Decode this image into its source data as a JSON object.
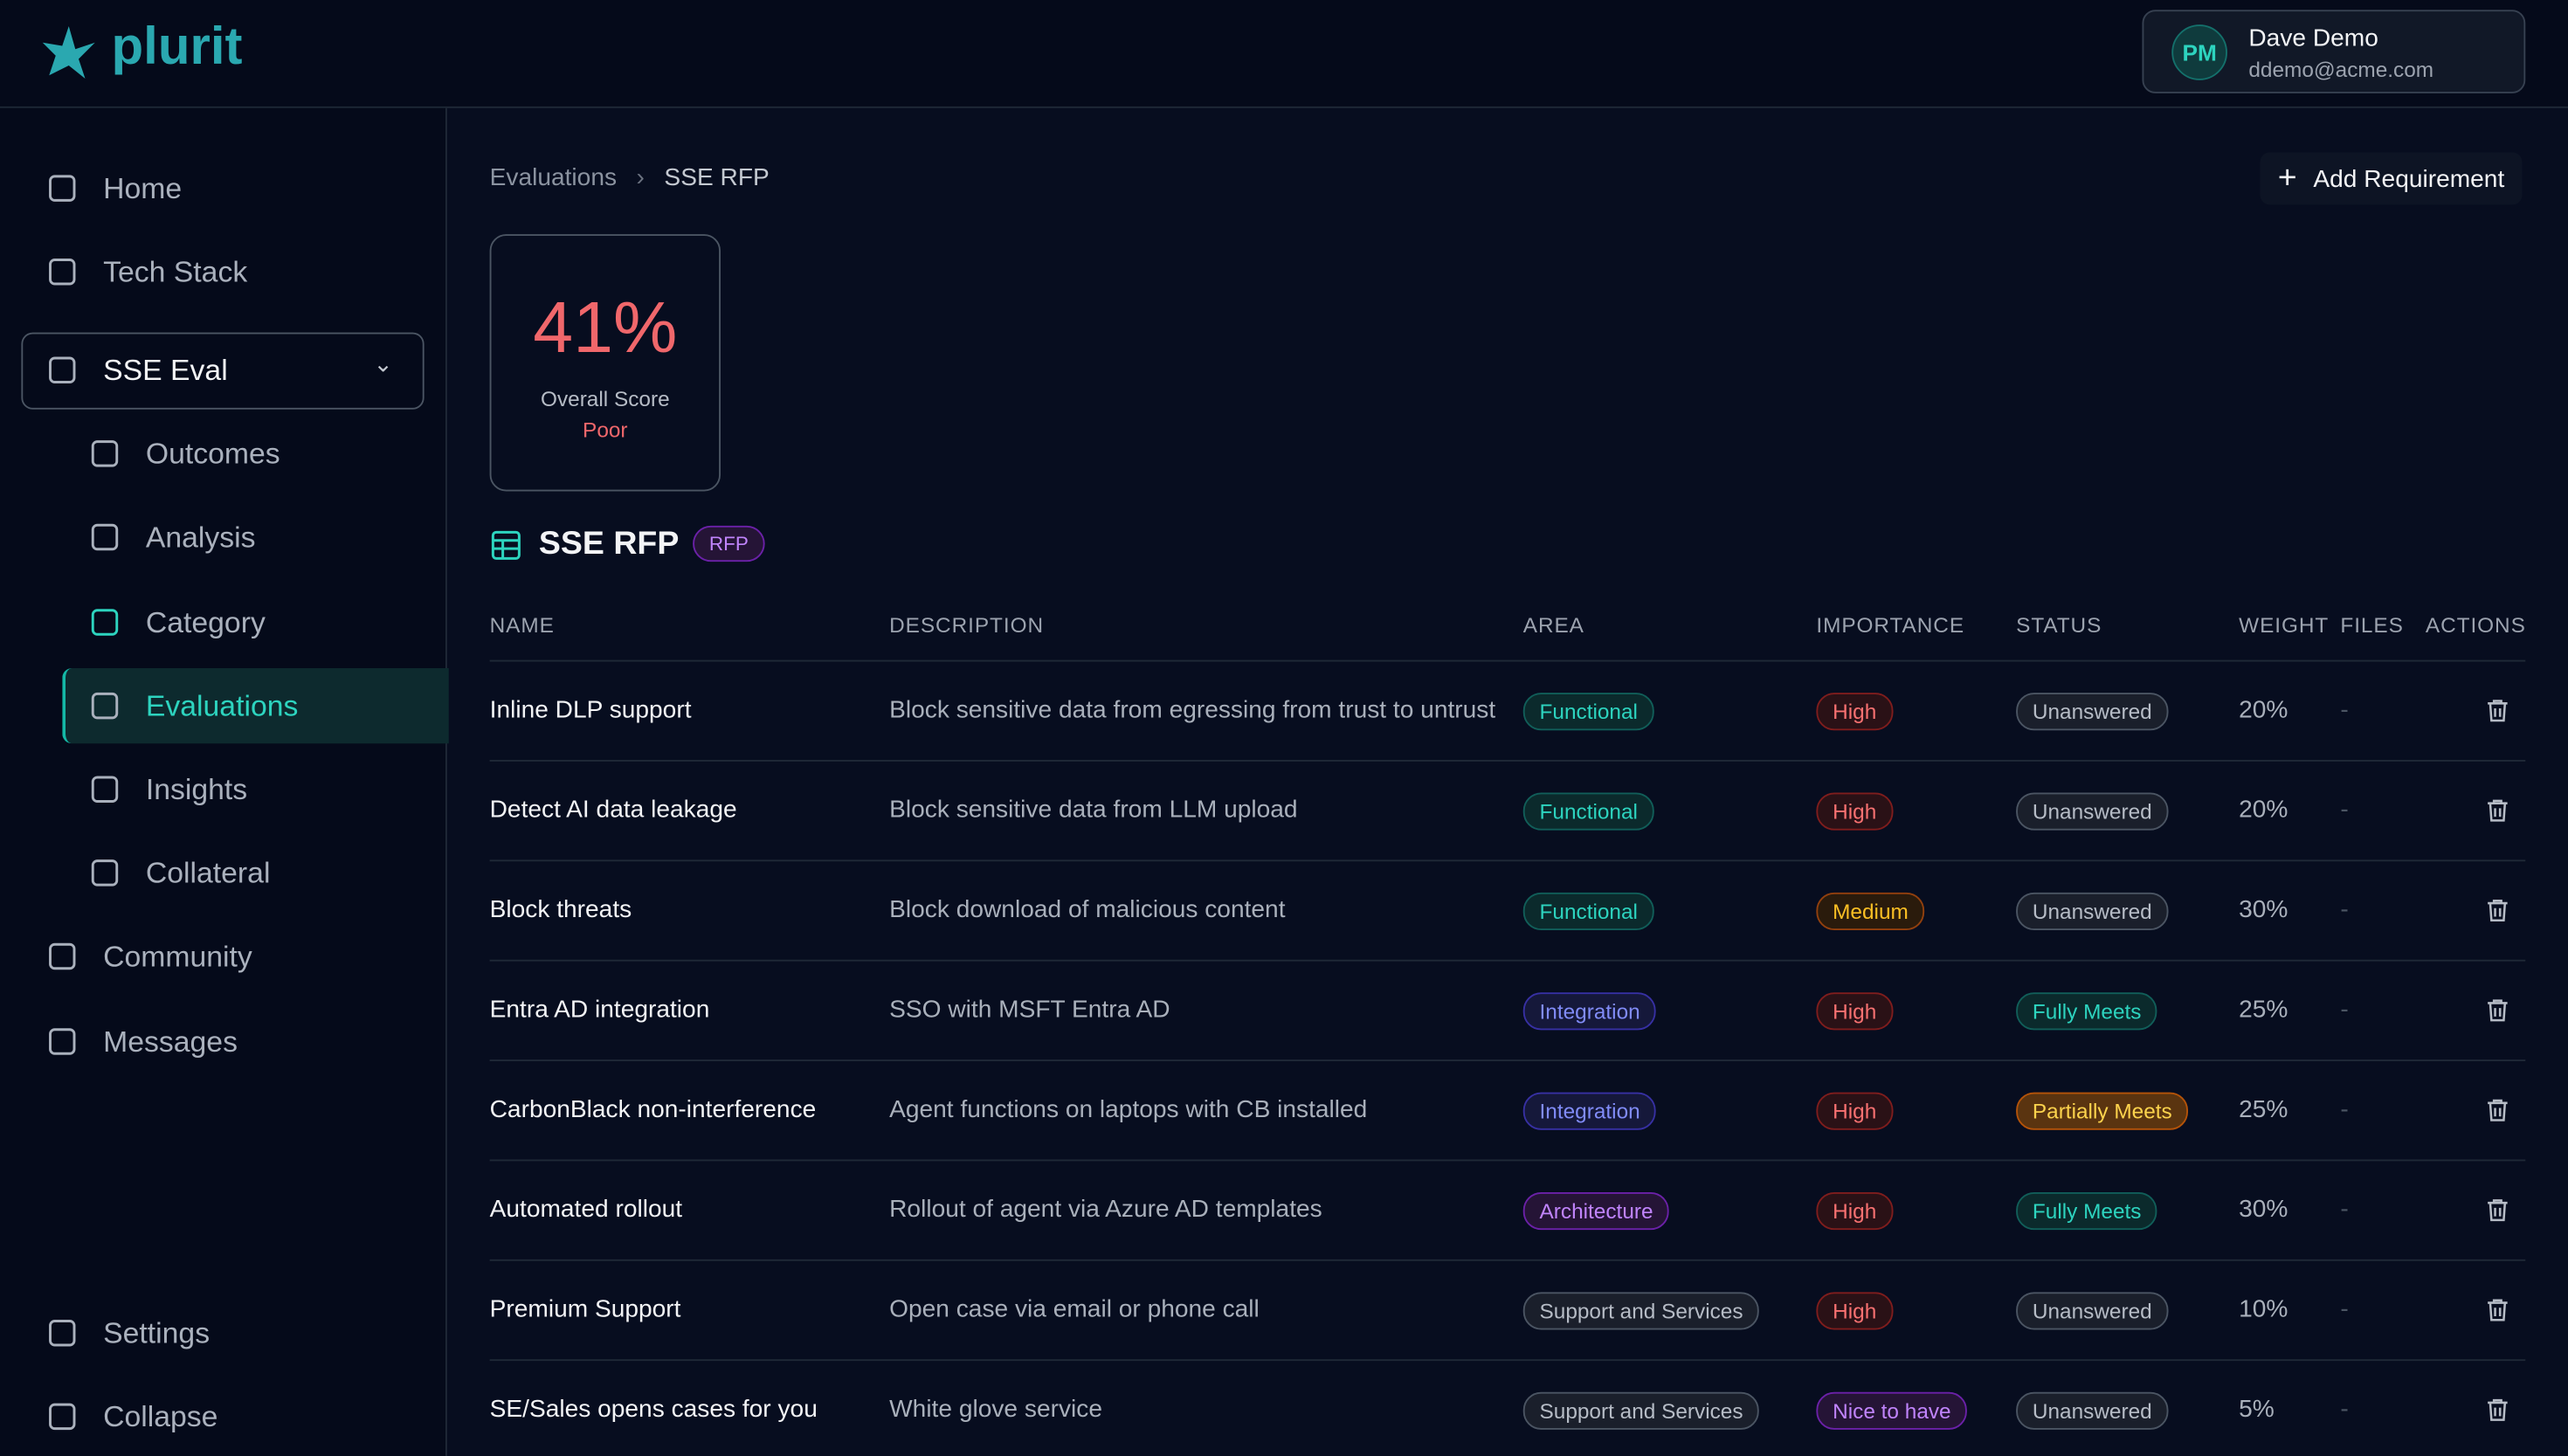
{
  "header": {
    "logo": "plurit",
    "user": {
      "initials": "PM",
      "name": "Dave Demo",
      "email": "ddemo@acme.com"
    }
  },
  "sidebar": {
    "nav": [
      "Home",
      "Tech Stack"
    ],
    "group": "SSE Eval",
    "subnav": [
      "Outcomes",
      "Analysis",
      "Category",
      "Evaluations",
      "Insights",
      "Collateral"
    ],
    "nav2": [
      "Community",
      "Messages"
    ],
    "footer": [
      "Settings",
      "Collapse"
    ]
  },
  "breadcrumb": [
    "Evaluations",
    "SSE RFP"
  ],
  "button": "Add Requirement",
  "score": {
    "value": "41%",
    "label": "Overall Score",
    "rating": "Poor"
  },
  "table": {
    "title": "SSE RFP",
    "tag": "RFP",
    "columns": [
      "NAME",
      "DESCRIPTION",
      "AREA",
      "IMPORTANCE",
      "STATUS",
      "WEIGHT",
      "FILES",
      "ACTIONS"
    ],
    "rows": [
      [
        "Inline DLP support",
        "Block sensitive data from egressing from trust to untrust",
        "Functional",
        "High",
        "Unanswered",
        "20%",
        "-"
      ],
      [
        "Detect AI data leakage",
        "Block sensitive data from LLM upload",
        "Functional",
        "High",
        "Unanswered",
        "20%",
        "-"
      ],
      [
        "Block threats",
        "Block download of malicious content",
        "Functional",
        "Medium",
        "Unanswered",
        "30%",
        "-"
      ],
      [
        "Entra AD integration",
        "SSO with MSFT Entra AD",
        "Integration",
        "High",
        "Fully Meets",
        "25%",
        "-"
      ],
      [
        "CarbonBlack non-interference",
        "Agent functions on laptops with CB installed",
        "Integration",
        "High",
        "Partially Meets",
        "25%",
        "-"
      ],
      [
        "Automated rollout",
        "Rollout of agent via Azure AD templates",
        "Architecture",
        "High",
        "Fully Meets",
        "30%",
        "-"
      ],
      [
        "Premium Support",
        "Open case via email or phone call",
        "Support and Services",
        "High",
        "Unanswered",
        "10%",
        "-"
      ],
      [
        "SE/Sales opens cases for you",
        "White glove service",
        "Support and Services",
        "Nice to have",
        "Unanswered",
        "5%",
        "-"
      ]
    ]
  }
}
